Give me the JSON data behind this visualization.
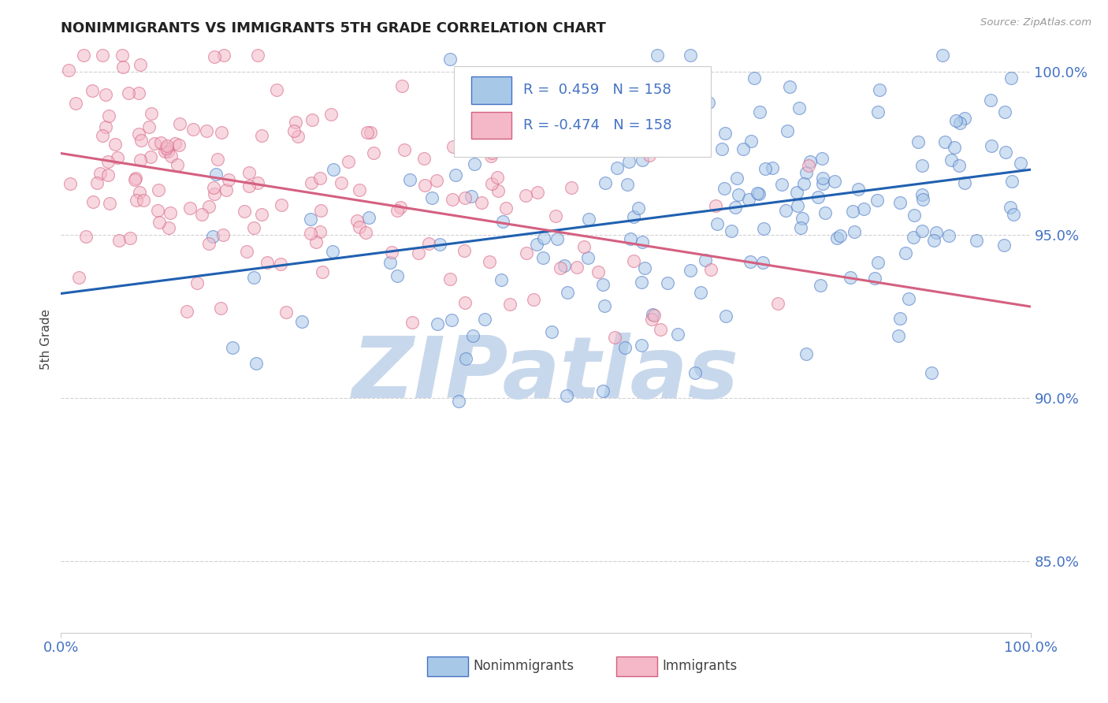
{
  "title": "NONIMMIGRANTS VS IMMIGRANTS 5TH GRADE CORRELATION CHART",
  "source_text": "Source: ZipAtlas.com",
  "ylabel": "5th Grade",
  "xlim": [
    0.0,
    1.0
  ],
  "ylim": [
    0.828,
    1.008
  ],
  "yticks": [
    0.85,
    0.9,
    0.95,
    1.0
  ],
  "ytick_labels": [
    "85.0%",
    "90.0%",
    "95.0%",
    "100.0%"
  ],
  "xticks": [
    0.0,
    1.0
  ],
  "xtick_labels": [
    "0.0%",
    "100.0%"
  ],
  "blue_fill": "#a8c8e8",
  "blue_edge": "#4472c4",
  "pink_fill": "#f4b8c8",
  "pink_edge": "#d46080",
  "blue_line_color": "#2060b0",
  "pink_line_color": "#d46080",
  "blue_R": 0.459,
  "pink_R": -0.474,
  "N": 158,
  "legend_label_blue": "Nonimmigrants",
  "legend_label_pink": "Immigrants",
  "watermark": "ZIPatlas",
  "watermark_color": "#c8d8ec",
  "title_color": "#222222",
  "axis_label_color": "#4472c4",
  "grid_color": "#cccccc",
  "background_color": "#ffffff",
  "blue_line_start_y": 0.932,
  "blue_line_end_y": 0.97,
  "pink_line_start_y": 0.975,
  "pink_line_end_y": 0.928
}
